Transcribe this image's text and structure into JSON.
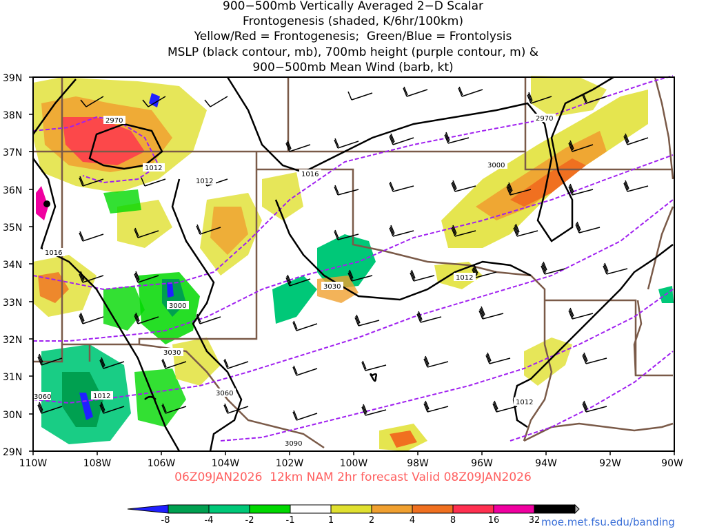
{
  "title": {
    "line1": "900−500mb Vertically Averaged 2−D Scalar",
    "line2": "Frontogenesis (shaded, K/6hr/100km)",
    "line3": "Yellow/Red = Frontogenesis;  Green/Blue = Frontolysis",
    "line4": "MSLP (black contour, mb), 700mb height (purple contour, m) &",
    "line5": "900−500mb Mean Wind (barb, kt)"
  },
  "valid_text": "06Z09JAN2026  12km NAM 2hr forecast Valid 08Z09JAN2026",
  "credit": "moe.met.fsu.edu/banding",
  "axes": {
    "lat_labels": [
      "39N",
      "38N",
      "37N",
      "36N",
      "35N",
      "34N",
      "33N",
      "32N",
      "31N",
      "30N",
      "29N"
    ],
    "lon_labels": [
      "110W",
      "108W",
      "106W",
      "104W",
      "102W",
      "100W",
      "98W",
      "96W",
      "94W",
      "92W",
      "90W"
    ]
  },
  "colorbar": {
    "labels": [
      "-8",
      "-4",
      "-2",
      "-1",
      "1",
      "2",
      "4",
      "8",
      "16",
      "32"
    ],
    "colors": [
      "#2020ff",
      "#00a050",
      "#00c878",
      "#00d800",
      "#ffffff",
      "#e0e030",
      "#f0a030",
      "#f07020",
      "#ff3050",
      "#f000a0",
      "#000000",
      "#b0b0b0"
    ]
  },
  "contour_labels": {
    "mslp": [
      "1012",
      "1012",
      "1016",
      "1016",
      "1012",
      "1012",
      "1012"
    ],
    "height": [
      "2970",
      "2970",
      "3000",
      "3000",
      "3030",
      "3030",
      "3060",
      "3060",
      "3090"
    ]
  },
  "colors": {
    "mslp": "#000000",
    "height": "#a020f0",
    "borders": "#7a5a48",
    "valid_text": "#ff6060",
    "credit": "#3a6fd8"
  }
}
